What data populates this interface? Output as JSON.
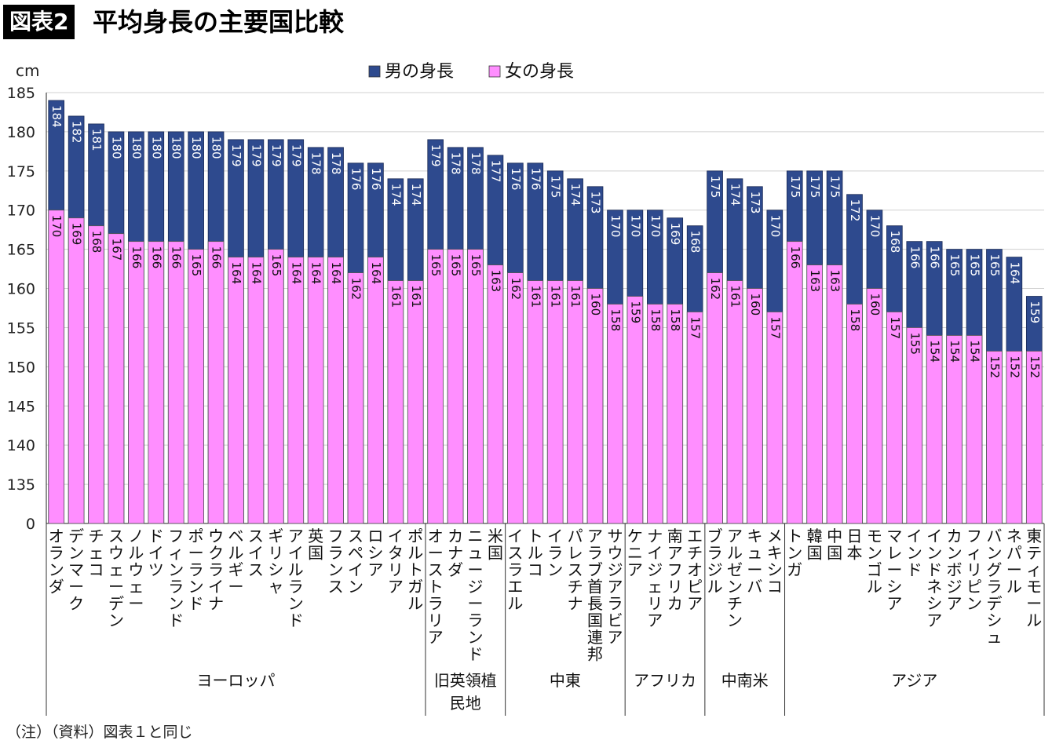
{
  "header": {
    "badge": "図表2",
    "title": "平均身長の主要国比較"
  },
  "footer": {
    "note": "（注）（資料）図表１と同じ"
  },
  "chart_data": {
    "type": "bar",
    "ylabel": "cm",
    "ylim": [
      0,
      185
    ],
    "y_ticks": [
      0,
      135,
      140,
      145,
      150,
      155,
      160,
      165,
      170,
      175,
      180,
      185
    ],
    "axis_break": true,
    "grid": true,
    "legend_position": "top-center",
    "colors": {
      "male": "#2e4a8e",
      "female": "#ff8eff"
    },
    "categories": [
      "オランダ",
      "デンマーク",
      "チェコ",
      "スウェーデン",
      "ノルウェー",
      "ドイツ",
      "フィンランド",
      "ポーランド",
      "ウクライナ",
      "ベルギー",
      "スイス",
      "ギリシャ",
      "アイルランド",
      "英国",
      "フランス",
      "スペイン",
      "ロシア",
      "イタリア",
      "ポルトガル",
      "オーストラリア",
      "カナダ",
      "ニュージーランド",
      "米国",
      "イスラエル",
      "トルコ",
      "イラン",
      "パレスチナ",
      "アラブ首長国連邦",
      "サウジアラビア",
      "ケニア",
      "ナイジェリア",
      "南アフリカ",
      "エチオピア",
      "ブラジル",
      "アルゼンチン",
      "キューバ",
      "メキシコ",
      "トンガ",
      "韓国",
      "中国",
      "日本",
      "モンゴル",
      "マレーシア",
      "インド",
      "インドネシア",
      "カンボジア",
      "フィリピン",
      "バングラデシュ",
      "ネパール",
      "東ティモール"
    ],
    "series": [
      {
        "name": "男の身長",
        "key": "male",
        "values": [
          184,
          182,
          181,
          180,
          180,
          180,
          180,
          180,
          180,
          179,
          179,
          179,
          179,
          178,
          178,
          176,
          176,
          174,
          174,
          179,
          178,
          178,
          177,
          176,
          176,
          175,
          174,
          173,
          170,
          170,
          170,
          169,
          168,
          175,
          174,
          173,
          170,
          175,
          175,
          175,
          172,
          170,
          168,
          166,
          166,
          165,
          165,
          165,
          164,
          159
        ]
      },
      {
        "name": "女の身長",
        "key": "female",
        "values": [
          170,
          169,
          168,
          167,
          166,
          166,
          166,
          165,
          166,
          164,
          164,
          165,
          164,
          164,
          164,
          162,
          164,
          161,
          161,
          165,
          165,
          165,
          163,
          162,
          161,
          161,
          161,
          160,
          158,
          159,
          158,
          158,
          157,
          162,
          161,
          160,
          157,
          166,
          163,
          163,
          158,
          160,
          157,
          155,
          154,
          154,
          154,
          152,
          152,
          152
        ]
      }
    ],
    "groups": [
      {
        "label": "ヨーロッパ",
        "start": 0,
        "end": 18
      },
      {
        "label": "旧英領植民地",
        "start": 19,
        "end": 22
      },
      {
        "label": "中東",
        "start": 23,
        "end": 28
      },
      {
        "label": "アフリカ",
        "start": 29,
        "end": 32
      },
      {
        "label": "中南米",
        "start": 33,
        "end": 36
      },
      {
        "label": "アジア",
        "start": 37,
        "end": 49
      }
    ]
  }
}
